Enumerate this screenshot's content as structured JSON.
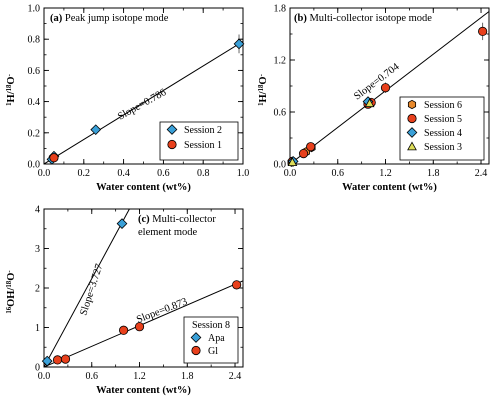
{
  "chart_data": [
    {
      "type": "scatter",
      "panel_label": "(a)",
      "title": "Peak jump isotope mode",
      "xlabel": "Water content (wt%)",
      "ylabel": "¹H/¹⁸O⁻",
      "xlim": [
        0,
        1.0
      ],
      "ylim": [
        0,
        1.0
      ],
      "xticks": [
        0,
        0.2,
        0.4,
        0.6,
        0.8,
        1.0
      ],
      "yticks": [
        0,
        0.2,
        0.4,
        0.6,
        0.8,
        1.0
      ],
      "xtick_labels": [
        "0.0",
        "0.2",
        "0.4",
        "0.6",
        "0.8",
        "1.0"
      ],
      "ytick_labels": [
        "0.0",
        "0.2",
        "0.4",
        "0.6",
        "0.8",
        "1.0"
      ],
      "legend_position": "bottom-right",
      "series": [
        {
          "name": "Session 2",
          "marker": "diamond",
          "color": "#3aa0d8",
          "x": [
            0.04,
            0.05,
            0.26,
            0.98
          ],
          "y": [
            0.03,
            0.05,
            0.22,
            0.77
          ],
          "yerr": [
            0.01,
            0.01,
            0.02,
            0.06
          ]
        },
        {
          "name": "Session 1",
          "marker": "circle",
          "color": "#e8401c",
          "x": [
            0.05
          ],
          "y": [
            0.04
          ],
          "yerr": [
            0.01
          ]
        }
      ],
      "fit_lines": [
        {
          "label": "Slope=0.786",
          "x": [
            0,
            1.0
          ],
          "y": [
            0,
            0.786
          ]
        }
      ]
    },
    {
      "type": "scatter",
      "panel_label": "(b)",
      "title": "Multi-collector isotope mode",
      "xlabel": "Water content (wt%)",
      "ylabel": "¹H/¹⁸O⁻",
      "xlim": [
        0,
        2.5
      ],
      "ylim": [
        0,
        1.8
      ],
      "xticks": [
        0,
        0.6,
        1.2,
        1.8,
        2.4
      ],
      "yticks": [
        0,
        0.6,
        1.2,
        1.8
      ],
      "xtick_labels": [
        "0.0",
        "0.6",
        "1.2",
        "1.8",
        "2.4"
      ],
      "ytick_labels": [
        "0.0",
        "0.6",
        "1.2",
        "1.8"
      ],
      "legend_position": "bottom-right",
      "series": [
        {
          "name": "Session 6",
          "marker": "hexagon",
          "color": "#e8892c",
          "x": [
            0.02,
            0.2,
            0.27
          ],
          "y": [
            0.02,
            0.14,
            0.19
          ],
          "yerr": [
            0.01,
            0.02,
            0.03
          ]
        },
        {
          "name": "Session 5",
          "marker": "circle",
          "color": "#e8401c",
          "x": [
            0.03,
            0.17,
            0.26,
            0.98,
            1.02,
            1.2,
            2.42
          ],
          "y": [
            0.03,
            0.12,
            0.2,
            0.69,
            0.71,
            0.88,
            1.53
          ],
          "yerr": [
            0.01,
            0.02,
            0.03,
            0.04,
            0.04,
            0.06,
            0.1
          ]
        },
        {
          "name": "Session 4",
          "marker": "diamond",
          "color": "#3aa0d8",
          "x": [
            0.04,
            0.98
          ],
          "y": [
            0.03,
            0.72
          ],
          "yerr": [
            0.01,
            0.04
          ]
        },
        {
          "name": "Session 3",
          "marker": "triangle",
          "color": "#dede5a",
          "x": [
            0.03,
            1.0
          ],
          "y": [
            0.02,
            0.7
          ],
          "yerr": [
            0.01,
            0.04
          ]
        }
      ],
      "fit_lines": [
        {
          "label": "Slope=0.704",
          "x": [
            0,
            2.5
          ],
          "y": [
            0,
            1.76
          ]
        }
      ]
    },
    {
      "type": "scatter",
      "panel_label": "(c)",
      "title": "Multi-collector element mode",
      "xlabel": "Water content (wt%)",
      "ylabel": "¹⁶OH/¹⁸O⁻",
      "xlim": [
        0,
        2.5
      ],
      "ylim": [
        0,
        4
      ],
      "xticks": [
        0,
        0.6,
        1.2,
        1.8,
        2.4
      ],
      "yticks": [
        0,
        1,
        2,
        3,
        4
      ],
      "xtick_labels": [
        "0.0",
        "0.6",
        "1.2",
        "1.8",
        "2.4"
      ],
      "ytick_labels": [
        "0",
        "1",
        "2",
        "3",
        "4"
      ],
      "legend_position": "bottom-right",
      "legend_title": "Session 8",
      "series": [
        {
          "name": "Apa",
          "marker": "diamond",
          "color": "#3aa0d8",
          "x": [
            0.04,
            0.98
          ],
          "y": [
            0.15,
            3.63
          ],
          "yerr": [
            0.03,
            0.08
          ]
        },
        {
          "name": "Gl",
          "marker": "circle",
          "color": "#e8401c",
          "x": [
            0.17,
            0.27,
            1.0,
            1.2,
            2.42
          ],
          "y": [
            0.18,
            0.2,
            0.93,
            1.02,
            2.08
          ],
          "yerr": [
            0.02,
            0.02,
            0.04,
            0.05,
            0.06
          ]
        }
      ],
      "fit_lines": [
        {
          "label": "Slope=3.727",
          "x": [
            0,
            1.073
          ],
          "y": [
            0,
            4.0
          ]
        },
        {
          "label": "Slope=0.873",
          "x": [
            0,
            2.5
          ],
          "y": [
            0,
            2.1825
          ]
        }
      ]
    }
  ]
}
